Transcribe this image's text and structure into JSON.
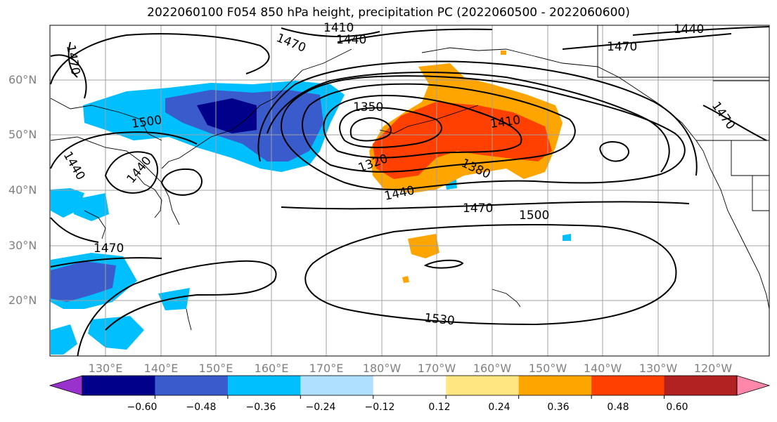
{
  "title": "2022060100 F054 850 hPa height, precipitation PC (2022060500 - 2022060600)",
  "lat_labels": [
    "60°N",
    "50°N",
    "40°N",
    "30°N",
    "20°N"
  ],
  "lon_labels": [
    "130°E",
    "140°E",
    "150°E",
    "160°E",
    "170°E",
    "180°W",
    "170°W",
    "160°W",
    "150°W",
    "140°W",
    "130°W",
    "120°W"
  ],
  "contour_labels": [
    "1410",
    "1440",
    "1470",
    "1470",
    "1440",
    "1470",
    "1350",
    "1410",
    "1470",
    "1500",
    "1440",
    "1440",
    "1320",
    "1380",
    "1440",
    "1470",
    "1500",
    "1470",
    "1530"
  ],
  "colorbar": {
    "tick_labels": [
      "−0.60",
      "−0.48",
      "−0.36",
      "−0.24",
      "−0.12",
      "0.12",
      "0.24",
      "0.36",
      "0.48",
      "0.60"
    ],
    "colors": [
      "#9932cc",
      "#00008b",
      "#3a5bcc",
      "#00bfff",
      "#b0e0ff",
      "#ffffff",
      "#ffe680",
      "#ffa500",
      "#ff4000",
      "#b22222",
      "#ff88aa"
    ]
  }
}
